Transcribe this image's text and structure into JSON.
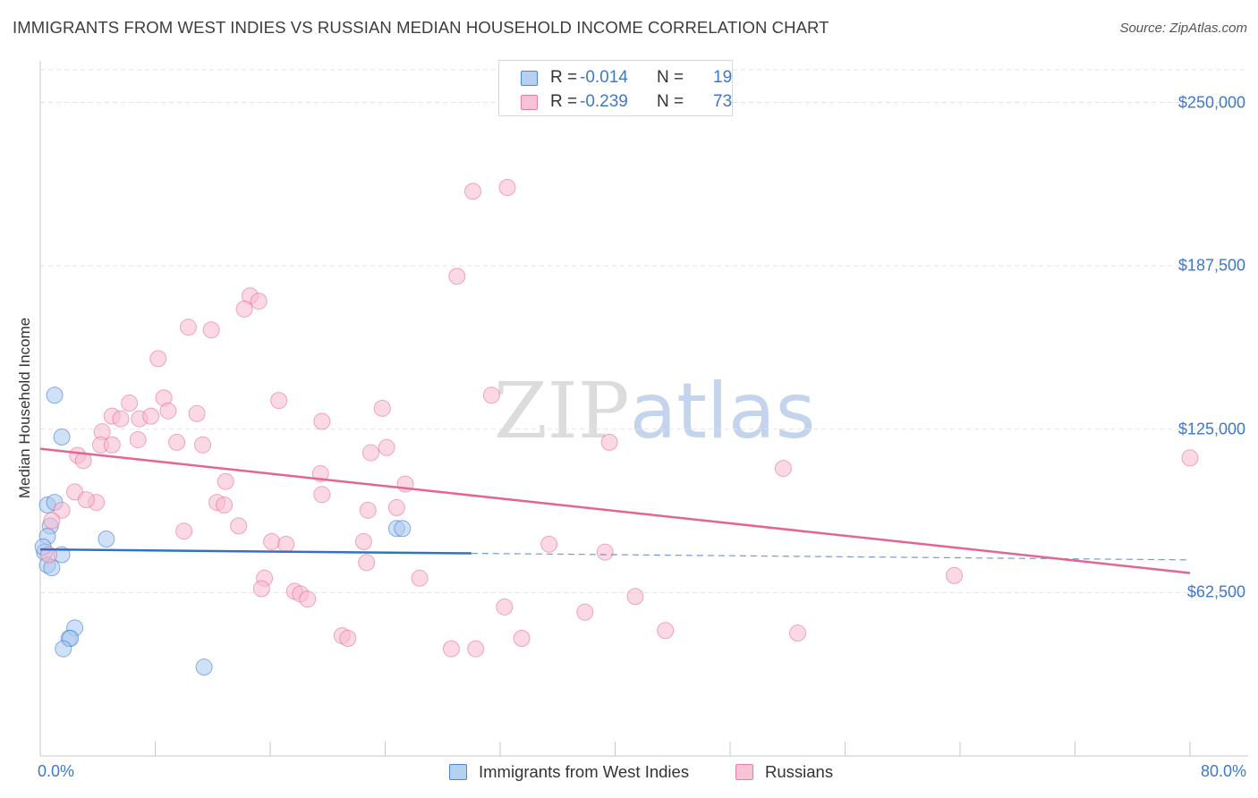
{
  "title": "IMMIGRANTS FROM WEST INDIES VS RUSSIAN MEDIAN HOUSEHOLD INCOME CORRELATION CHART",
  "source": "Source: ZipAtlas.com",
  "watermark": {
    "zip": "ZIP",
    "atlas": "atlas"
  },
  "colors": {
    "blue_fill": "#aac8f0",
    "blue_line": "#2f72cc",
    "pink_fill": "#f7b9cd",
    "pink_line": "#e46690",
    "tick_text": "#3f78c7",
    "grid": "#e4e4e4"
  },
  "stats": [
    {
      "r_label": "R =",
      "r_value": "-0.014",
      "n_label": "N =",
      "n_value": "19"
    },
    {
      "r_label": "R =",
      "r_value": "-0.239",
      "n_label": "N =",
      "n_value": "73"
    }
  ],
  "legend": [
    {
      "label": "Immigrants from West Indies"
    },
    {
      "label": "Russians"
    }
  ],
  "chart_data": {
    "type": "scatter",
    "title": "IMMIGRANTS FROM WEST INDIES VS RUSSIAN MEDIAN HOUSEHOLD INCOME CORRELATION CHART",
    "xlabel": "",
    "ylabel": "Median Household Income",
    "xlim": [
      0,
      80
    ],
    "ylim": [
      0,
      262500
    ],
    "x_tick_labels": [
      "0.0%",
      "80.0%"
    ],
    "y_ticks": [
      62500,
      125000,
      187500,
      250000
    ],
    "y_tick_labels": [
      "$62,500",
      "$125,000",
      "$187,500",
      "$250,000"
    ],
    "grid": true,
    "series": [
      {
        "name": "Immigrants from West Indies",
        "points": [
          [
            1.0,
            138000
          ],
          [
            1.5,
            122000
          ],
          [
            0.5,
            96000
          ],
          [
            1.0,
            97000
          ],
          [
            0.7,
            88000
          ],
          [
            0.5,
            84000
          ],
          [
            0.3,
            78000
          ],
          [
            1.5,
            77000
          ],
          [
            0.5,
            73000
          ],
          [
            0.8,
            72000
          ],
          [
            4.6,
            83000
          ],
          [
            24.8,
            87000
          ],
          [
            25.2,
            87000
          ],
          [
            2.4,
            49000
          ],
          [
            2.0,
            45000
          ],
          [
            2.1,
            45000
          ],
          [
            1.6,
            41000
          ],
          [
            11.4,
            34000
          ],
          [
            0.2,
            80000
          ]
        ],
        "trend": {
          "x0": 0,
          "y0": 79000,
          "x1": 30,
          "y1": 77500,
          "dashed_to_x": 80,
          "dashed_to_y": 75000
        }
      },
      {
        "name": "Russians",
        "points": [
          [
            30.1,
            216000
          ],
          [
            32.5,
            217500
          ],
          [
            29.0,
            183500
          ],
          [
            14.6,
            176000
          ],
          [
            15.2,
            174000
          ],
          [
            14.2,
            171000
          ],
          [
            10.3,
            164000
          ],
          [
            11.9,
            163000
          ],
          [
            8.2,
            152000
          ],
          [
            31.4,
            138000
          ],
          [
            16.6,
            136000
          ],
          [
            23.8,
            133000
          ],
          [
            8.6,
            137000
          ],
          [
            6.2,
            135000
          ],
          [
            5.0,
            130000
          ],
          [
            5.6,
            129000
          ],
          [
            6.9,
            129000
          ],
          [
            7.7,
            130000
          ],
          [
            8.9,
            132000
          ],
          [
            10.9,
            131000
          ],
          [
            19.6,
            128000
          ],
          [
            4.3,
            124000
          ],
          [
            2.6,
            115000
          ],
          [
            4.2,
            119000
          ],
          [
            5.0,
            119000
          ],
          [
            6.8,
            121000
          ],
          [
            9.5,
            120000
          ],
          [
            11.3,
            119000
          ],
          [
            3.0,
            113000
          ],
          [
            24.1,
            118000
          ],
          [
            23.0,
            116000
          ],
          [
            39.6,
            120000
          ],
          [
            51.7,
            110000
          ],
          [
            80.0,
            114000
          ],
          [
            12.9,
            105000
          ],
          [
            19.5,
            108000
          ],
          [
            25.4,
            104000
          ],
          [
            19.6,
            100000
          ],
          [
            3.9,
            97000
          ],
          [
            12.3,
            97000
          ],
          [
            12.8,
            96000
          ],
          [
            1.5,
            94000
          ],
          [
            2.4,
            101000
          ],
          [
            3.2,
            98000
          ],
          [
            0.8,
            90000
          ],
          [
            24.8,
            95000
          ],
          [
            22.8,
            94000
          ],
          [
            13.8,
            88000
          ],
          [
            10.0,
            86000
          ],
          [
            16.1,
            82000
          ],
          [
            17.1,
            81000
          ],
          [
            22.5,
            82000
          ],
          [
            35.4,
            81000
          ],
          [
            39.3,
            78000
          ],
          [
            0.6,
            77000
          ],
          [
            22.7,
            74000
          ],
          [
            15.6,
            68000
          ],
          [
            26.4,
            68000
          ],
          [
            15.4,
            64000
          ],
          [
            17.7,
            63000
          ],
          [
            18.1,
            62000
          ],
          [
            18.6,
            60000
          ],
          [
            63.6,
            69000
          ],
          [
            41.4,
            61000
          ],
          [
            32.3,
            57000
          ],
          [
            37.9,
            55000
          ],
          [
            43.5,
            48000
          ],
          [
            52.7,
            47000
          ],
          [
            21.0,
            46000
          ],
          [
            21.4,
            45000
          ],
          [
            33.5,
            45000
          ],
          [
            28.6,
            41000
          ],
          [
            30.3,
            41000
          ]
        ],
        "trend": {
          "x0": 0,
          "y0": 117500,
          "x1": 80,
          "y1": 70000
        }
      }
    ]
  }
}
